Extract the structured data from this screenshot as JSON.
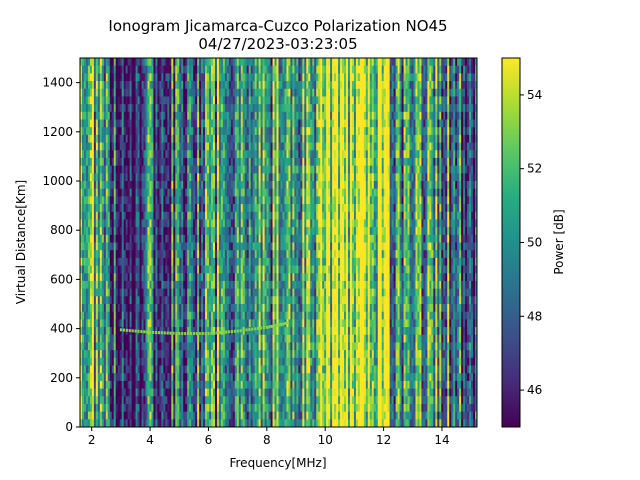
{
  "chart_data": {
    "type": "heatmap",
    "title_line1": "Ionogram Jicamarca-Cuzco Polarization NO45",
    "title_line2": "04/27/2023-03:23:05",
    "xlabel": "Frequency[MHz]",
    "ylabel": "Virtual Distance[Km]",
    "xlim": [
      1.6,
      15.2
    ],
    "ylim": [
      0,
      1500
    ],
    "x_ticks": [
      2,
      4,
      6,
      8,
      10,
      12,
      14
    ],
    "y_ticks": [
      0,
      200,
      400,
      600,
      800,
      1000,
      1200,
      1400
    ],
    "colorbar": {
      "label": "Power [dB]",
      "range": [
        45,
        55
      ],
      "ticks": [
        46,
        48,
        50,
        52,
        54
      ],
      "colormap": "viridis"
    },
    "power_profile_db": {
      "frequency_mhz": [
        1.6,
        2.0,
        2.4,
        2.8,
        3.2,
        3.6,
        4.0,
        4.4,
        4.8,
        5.2,
        5.6,
        6.0,
        6.4,
        6.8,
        7.2,
        7.6,
        8.0,
        8.4,
        8.8,
        9.2,
        9.6,
        10.0,
        10.4,
        10.8,
        11.2,
        11.6,
        12.0,
        12.4,
        12.8,
        13.2,
        13.6,
        14.0,
        14.4,
        14.8,
        15.2
      ],
      "mean_power_db": [
        53.5,
        52.5,
        50.0,
        49.0,
        48.0,
        47.5,
        48.5,
        48.5,
        48.0,
        49.0,
        49.0,
        48.5,
        50.0,
        51.0,
        50.0,
        49.5,
        50.5,
        51.0,
        51.5,
        49.5,
        52.0,
        53.0,
        54.8,
        54.5,
        54.9,
        54.9,
        53.5,
        50.0,
        51.5,
        50.5,
        51.0,
        50.0,
        49.0,
        49.5,
        48.5
      ]
    },
    "trace": {
      "frequency_mhz": [
        3.0,
        4.0,
        5.0,
        6.0,
        7.0,
        8.0,
        8.8
      ],
      "virtual_distance_km": [
        395,
        385,
        380,
        380,
        390,
        405,
        425
      ]
    }
  }
}
